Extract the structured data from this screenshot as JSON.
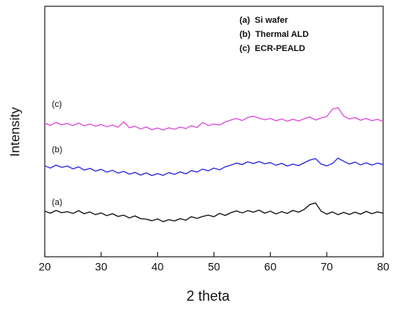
{
  "chart_data": {
    "type": "line",
    "xlabel": "2 theta",
    "ylabel": "Intensity",
    "x": [
      20,
      21,
      22,
      23,
      24,
      25,
      26,
      27,
      28,
      29,
      30,
      31,
      32,
      33,
      34,
      35,
      36,
      37,
      38,
      39,
      40,
      41,
      42,
      43,
      44,
      45,
      46,
      47,
      48,
      49,
      50,
      51,
      52,
      53,
      54,
      55,
      56,
      57,
      58,
      59,
      60,
      61,
      62,
      63,
      64,
      65,
      66,
      67,
      68,
      69,
      70,
      71,
      72,
      73,
      74,
      75,
      76,
      77,
      78,
      79,
      80
    ],
    "series": [
      {
        "name": "(a)  Si wafer",
        "color": "#111111",
        "values": [
          18.2,
          17.4,
          18.5,
          17.6,
          18.0,
          17.3,
          18.4,
          17.2,
          17.9,
          16.8,
          17.5,
          16.4,
          17.2,
          16.1,
          16.6,
          15.5,
          16.3,
          15.2,
          15.0,
          14.4,
          15.1,
          14.0,
          14.8,
          14.3,
          15.2,
          14.6,
          16.0,
          15.3,
          16.1,
          16.6,
          16.0,
          17.3,
          16.5,
          17.6,
          18.3,
          17.5,
          18.4,
          17.8,
          18.6,
          17.4,
          18.2,
          17.1,
          18.0,
          17.3,
          18.5,
          17.8,
          18.9,
          20.8,
          21.5,
          18.2,
          17.0,
          17.9,
          16.8,
          17.7,
          16.9,
          17.8,
          17.0,
          18.1,
          17.2,
          17.9,
          17.4
        ]
      },
      {
        "name": "(b)  Thermal ALD",
        "color": "#2a2ae0",
        "values": [
          36.3,
          35.4,
          36.6,
          35.7,
          36.2,
          35.1,
          35.9,
          34.6,
          35.3,
          34.2,
          34.9,
          33.8,
          34.5,
          33.4,
          34.1,
          33.0,
          33.7,
          32.6,
          33.5,
          32.4,
          33.2,
          32.5,
          33.6,
          32.9,
          33.9,
          33.1,
          34.4,
          33.8,
          35.0,
          34.3,
          35.4,
          34.7,
          35.9,
          36.6,
          37.4,
          36.8,
          37.9,
          37.2,
          38.0,
          37.1,
          37.6,
          36.5,
          37.3,
          36.2,
          37.0,
          36.4,
          37.5,
          38.6,
          39.2,
          37.0,
          36.3,
          37.2,
          39.4,
          38.1,
          37.0,
          37.8,
          36.7,
          37.5,
          36.6,
          37.4,
          36.8
        ]
      },
      {
        "name": "(c)  ECR-PEALD",
        "color": "#d94fd9",
        "values": [
          53.3,
          52.5,
          53.6,
          52.7,
          53.2,
          52.4,
          53.4,
          52.3,
          53.0,
          52.1,
          52.8,
          51.9,
          52.6,
          51.7,
          53.9,
          51.5,
          52.1,
          51.0,
          51.8,
          50.7,
          51.4,
          50.6,
          51.5,
          50.9,
          51.8,
          51.2,
          52.3,
          51.6,
          53.6,
          52.4,
          53.0,
          52.6,
          53.8,
          54.6,
          55.2,
          54.4,
          55.6,
          56.1,
          55.3,
          54.7,
          55.2,
          54.3,
          55.0,
          54.1,
          54.9,
          54.2,
          55.1,
          55.8,
          54.6,
          55.4,
          56.0,
          58.9,
          59.5,
          56.2,
          55.0,
          55.6,
          54.5,
          55.2,
          54.3,
          54.9,
          53.9
        ]
      }
    ],
    "annotations": [
      "(c)",
      "(b)",
      "(a)"
    ],
    "xlim": [
      20,
      80
    ],
    "xticks": [
      20,
      30,
      40,
      50,
      60,
      70,
      80
    ],
    "ylim": [
      0,
      100
    ]
  }
}
